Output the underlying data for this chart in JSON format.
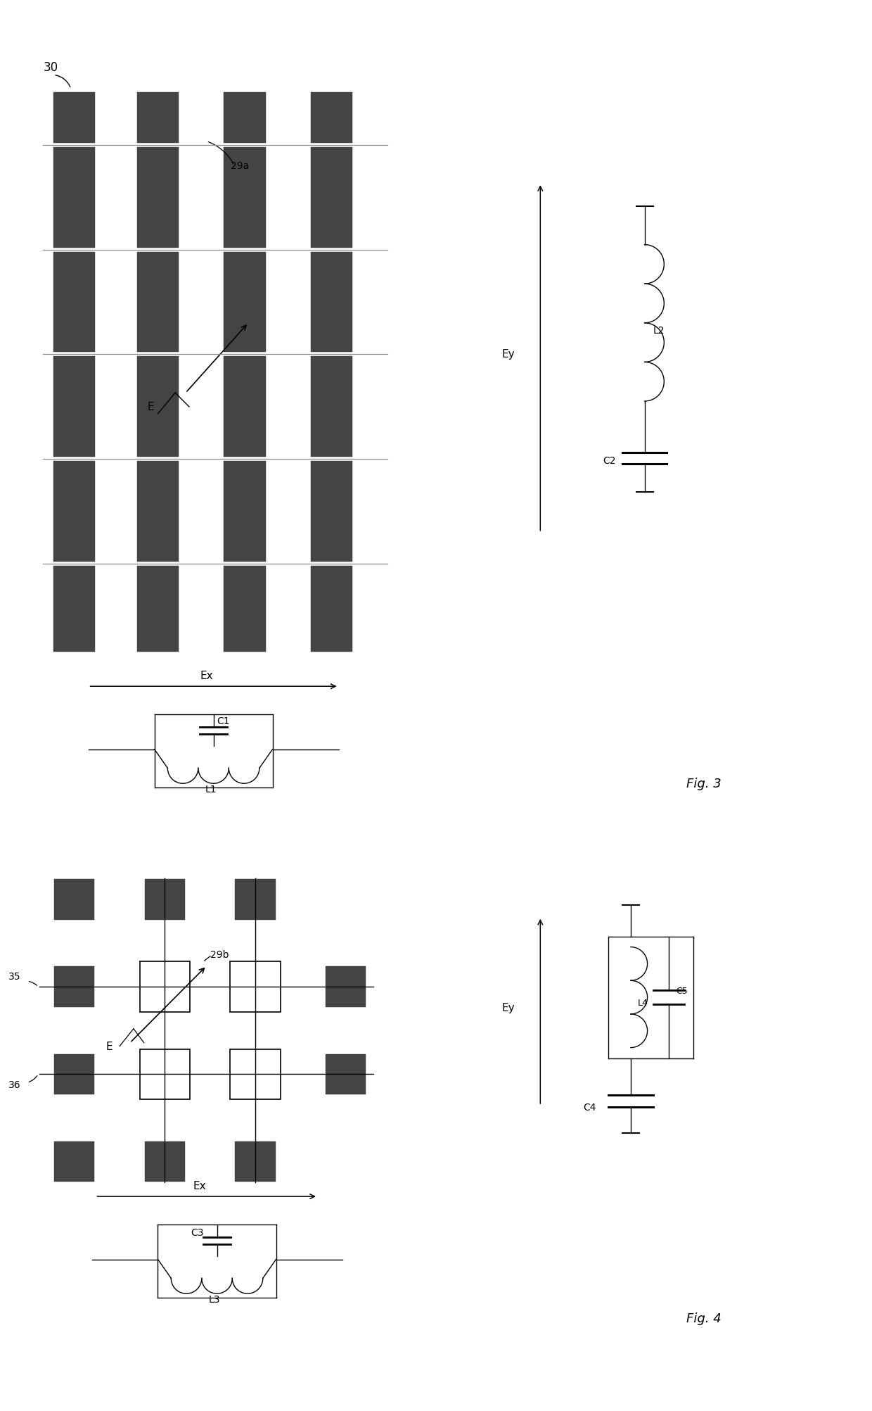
{
  "fig_width": 12.4,
  "fig_height": 20.05,
  "bg_color": "#ffffff",
  "bar_color": "#444444",
  "black": "#000000",
  "fig3_label": "Fig. 3",
  "fig4_label": "Fig. 4",
  "label_30": "30",
  "label_29a": "29a",
  "label_E_fig3": "E",
  "label_Ex_fig3": "Ex",
  "label_Ey_fig3": "Ey",
  "label_L1": "L1",
  "label_C1": "C1",
  "label_L2": "L2",
  "label_C2": "C2",
  "label_35": "35",
  "label_36": "36",
  "label_29b": "29b",
  "label_E_fig4": "E",
  "label_Ex_fig4": "Ex",
  "label_Ey_fig4": "Ey",
  "label_L3": "L3",
  "label_C3": "C3",
  "label_L4": "L4",
  "label_C4": "C4",
  "label_C5": "C5"
}
